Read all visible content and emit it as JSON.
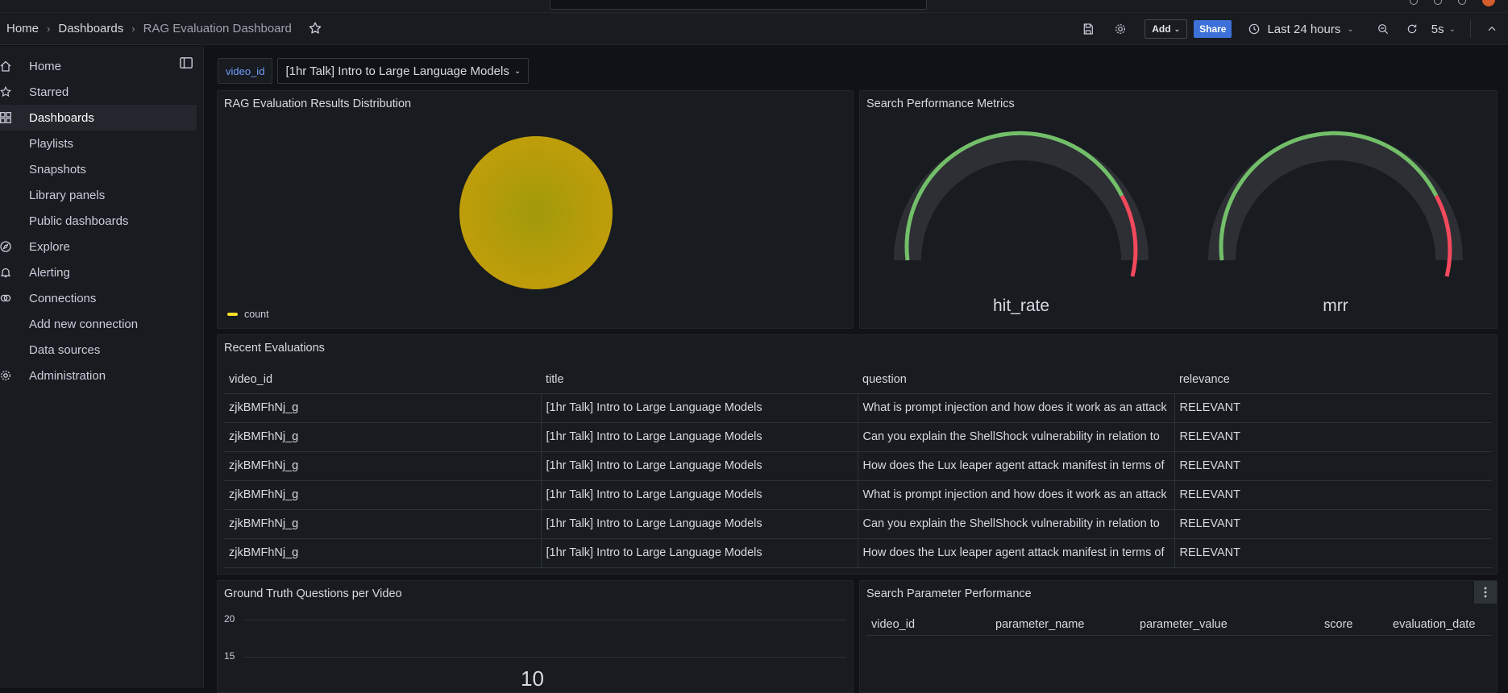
{
  "breadcrumb": {
    "home": "Home",
    "dashboards": "Dashboards",
    "current": "RAG Evaluation Dashboard"
  },
  "toolbar": {
    "add_label": "Add",
    "share_label": "Share",
    "time_range": "Last 24 hours",
    "refresh_interval": "5s"
  },
  "sidebar": {
    "items": [
      {
        "label": "Home"
      },
      {
        "label": "Starred"
      },
      {
        "label": "Dashboards"
      },
      {
        "label": "Playlists"
      },
      {
        "label": "Snapshots"
      },
      {
        "label": "Library panels"
      },
      {
        "label": "Public dashboards"
      },
      {
        "label": "Explore"
      },
      {
        "label": "Alerting"
      },
      {
        "label": "Connections"
      },
      {
        "label": "Add new connection"
      },
      {
        "label": "Data sources"
      },
      {
        "label": "Administration"
      }
    ]
  },
  "variable": {
    "label": "video_id",
    "value": "[1hr Talk] Intro to Large Language Models"
  },
  "panels": {
    "pie": {
      "title": "RAG Evaluation Results Distribution",
      "legend": "count",
      "color": "#fade2a"
    },
    "gauges": {
      "title": "Search Performance Metrics",
      "gauge1": "hit_rate",
      "gauge2": "mrr",
      "green": "#73bf69",
      "red": "#f2495c"
    },
    "table": {
      "title": "Recent Evaluations",
      "columns": [
        "video_id",
        "title",
        "question",
        "relevance"
      ],
      "rows": [
        [
          "zjkBMFhNj_g",
          "[1hr Talk] Intro to Large Language Models",
          "What is prompt injection and how does it work as an attack",
          "RELEVANT"
        ],
        [
          "zjkBMFhNj_g",
          "[1hr Talk] Intro to Large Language Models",
          "Can you explain the ShellShock vulnerability in relation to",
          "RELEVANT"
        ],
        [
          "zjkBMFhNj_g",
          "[1hr Talk] Intro to Large Language Models",
          "How does the Lux leaper agent attack manifest in terms of",
          "RELEVANT"
        ],
        [
          "zjkBMFhNj_g",
          "[1hr Talk] Intro to Large Language Models",
          "What is prompt injection and how does it work as an attack",
          "RELEVANT"
        ],
        [
          "zjkBMFhNj_g",
          "[1hr Talk] Intro to Large Language Models",
          "Can you explain the ShellShock vulnerability in relation to",
          "RELEVANT"
        ],
        [
          "zjkBMFhNj_g",
          "[1hr Talk] Intro to Large Language Models",
          "How does the Lux leaper agent attack manifest in terms of",
          "RELEVANT"
        ]
      ]
    },
    "bar": {
      "title": "Ground Truth Questions per Video",
      "ticks": [
        "20",
        "15"
      ],
      "value_label": "10"
    },
    "params": {
      "title": "Search Parameter Performance",
      "columns": [
        "video_id",
        "parameter_name",
        "parameter_value",
        "score",
        "evaluation_date"
      ]
    }
  }
}
